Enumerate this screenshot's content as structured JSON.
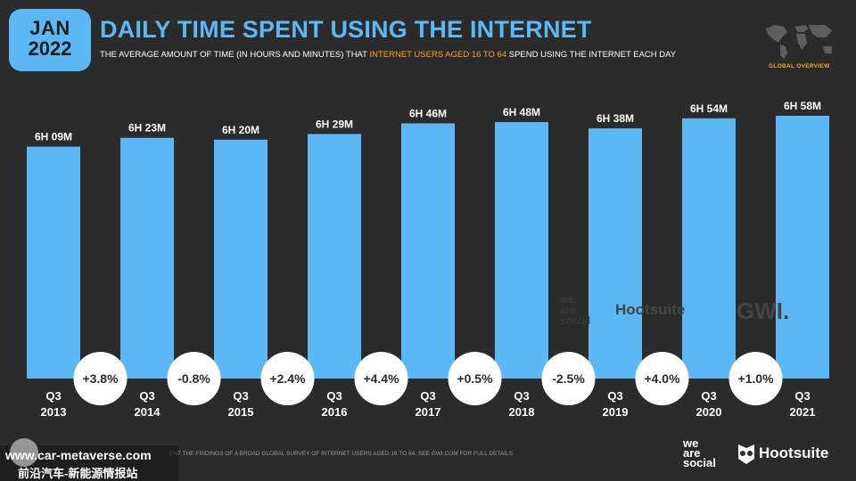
{
  "badge": {
    "month": "JAN",
    "year": "2022"
  },
  "header": {
    "title": "DAILY TIME SPENT USING THE INTERNET",
    "subtitle_pre": "THE AVERAGE AMOUNT OF TIME (IN HOURS AND MINUTES) THAT ",
    "subtitle_highlight": "INTERNET USERS AGED 16 TO 64",
    "subtitle_post": " SPEND USING THE INTERNET EACH DAY",
    "map_label": "GLOBAL OVERVIEW"
  },
  "chart_data": {
    "type": "bar",
    "categories": [
      "Q3 2013",
      "Q3 2014",
      "Q3 2015",
      "Q3 2016",
      "Q3 2017",
      "Q3 2018",
      "Q3 2019",
      "Q3 2020",
      "Q3 2021"
    ],
    "values_minutes": [
      369,
      383,
      380,
      389,
      406,
      408,
      398,
      414,
      418
    ],
    "value_labels": [
      "6H 09M",
      "6H 23M",
      "6H 20M",
      "6H 29M",
      "6H 46M",
      "6H 48M",
      "6H 38M",
      "6H 54M",
      "6H 58M"
    ],
    "changes": [
      "+3.8%",
      "-0.8%",
      "+2.4%",
      "+4.4%",
      "+0.5%",
      "-2.5%",
      "+4.0%",
      "+1.0%"
    ],
    "bar_color": "#5bb8f5",
    "ylim": [
      0,
      418
    ]
  },
  "watermarks": {
    "social": [
      "we",
      "are",
      "social"
    ],
    "hootsuite": "Hootsuite",
    "gwi": "GWI."
  },
  "footer": {
    "source": "ENT THE FINDINGS OF A BROAD GLOBAL SURVEY OF INTERNET USERS AGED 16 TO 64. SEE GWI.COM FOR FULL DETAILS.",
    "brand_social": [
      "we",
      "are",
      "social"
    ],
    "brand_hootsuite": "Hootsuite",
    "site_url": "www.car-metaverse.com",
    "site_cn": "前沿汽车-新能源情报站"
  }
}
